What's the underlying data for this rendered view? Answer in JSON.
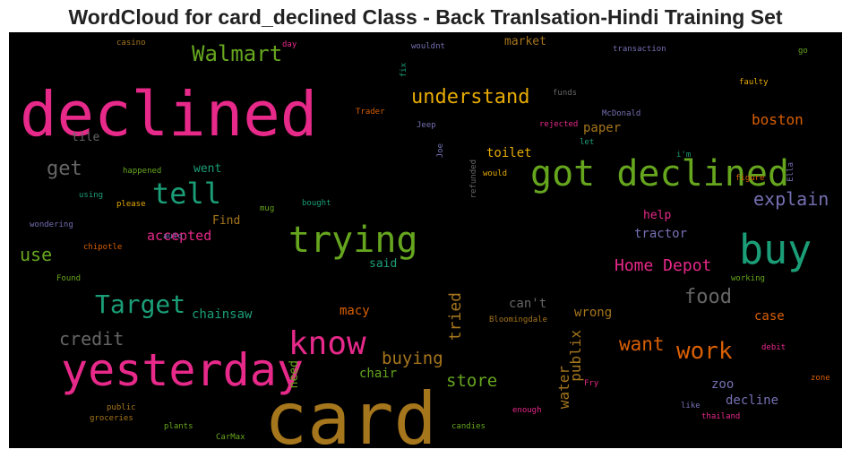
{
  "chart_data": {
    "type": "wordcloud",
    "title": "WordCloud for card_declined Class - Back Tranlsation-Hindi Training Set",
    "background": "#000000",
    "colors": {
      "pink": "#e7298a",
      "orange": "#d95f02",
      "green": "#66a61e",
      "teal": "#1b9e77",
      "gold": "#e6ab02",
      "brown": "#a6761d",
      "purple": "#7570b3",
      "gray": "#666666"
    },
    "words": [
      {
        "text": "card",
        "weight": 1.0,
        "color": "#a6761d",
        "orientation": "horizontal"
      },
      {
        "text": "declined",
        "weight": 0.86,
        "color": "#e7298a",
        "orientation": "horizontal"
      },
      {
        "text": "yesterday",
        "weight": 0.63,
        "color": "#e7298a",
        "orientation": "horizontal"
      },
      {
        "text": "buy",
        "weight": 0.56,
        "color": "#1b9e77",
        "orientation": "horizontal"
      },
      {
        "text": "got declined",
        "weight": 0.5,
        "color": "#66a61e",
        "orientation": "horizontal"
      },
      {
        "text": "trying",
        "weight": 0.5,
        "color": "#66a61e",
        "orientation": "horizontal"
      },
      {
        "text": "know",
        "weight": 0.45,
        "color": "#e7298a",
        "orientation": "horizontal"
      },
      {
        "text": "tell",
        "weight": 0.4,
        "color": "#1b9e77",
        "orientation": "horizontal"
      },
      {
        "text": "Target",
        "weight": 0.35,
        "color": "#1b9e77",
        "orientation": "horizontal"
      },
      {
        "text": "work",
        "weight": 0.33,
        "color": "#d95f02",
        "orientation": "horizontal"
      },
      {
        "text": "Walmart",
        "weight": 0.3,
        "color": "#66a61e",
        "orientation": "horizontal"
      },
      {
        "text": "food",
        "weight": 0.28,
        "color": "#666666",
        "orientation": "horizontal"
      },
      {
        "text": "understand",
        "weight": 0.27,
        "color": "#e6ab02",
        "orientation": "horizontal"
      },
      {
        "text": "explain",
        "weight": 0.25,
        "color": "#7570b3",
        "orientation": "horizontal"
      },
      {
        "text": "want",
        "weight": 0.26,
        "color": "#d95f02",
        "orientation": "horizontal"
      },
      {
        "text": "get",
        "weight": 0.27,
        "color": "#666666",
        "orientation": "horizontal"
      },
      {
        "text": "credit",
        "weight": 0.25,
        "color": "#666666",
        "orientation": "horizontal"
      },
      {
        "text": "use",
        "weight": 0.25,
        "color": "#66a61e",
        "orientation": "horizontal"
      },
      {
        "text": "Home Depot",
        "weight": 0.22,
        "color": "#e7298a",
        "orientation": "horizontal"
      },
      {
        "text": "buying",
        "weight": 0.24,
        "color": "#a6761d",
        "orientation": "horizontal"
      },
      {
        "text": "store",
        "weight": 0.24,
        "color": "#66a61e",
        "orientation": "horizontal"
      },
      {
        "text": "tried",
        "weight": 0.23,
        "color": "#a6761d",
        "orientation": "vertical"
      },
      {
        "text": "publix",
        "weight": 0.2,
        "color": "#a6761d",
        "orientation": "vertical"
      },
      {
        "text": "water",
        "weight": 0.2,
        "color": "#a6761d",
        "orientation": "vertical"
      },
      {
        "text": "boston",
        "weight": 0.2,
        "color": "#d95f02",
        "orientation": "horizontal"
      },
      {
        "text": "accepted",
        "weight": 0.19,
        "color": "#e7298a",
        "orientation": "horizontal"
      },
      {
        "text": "chainsaw",
        "weight": 0.18,
        "color": "#1b9e77",
        "orientation": "horizontal"
      },
      {
        "text": "macy",
        "weight": 0.18,
        "color": "#d95f02",
        "orientation": "horizontal"
      },
      {
        "text": "chair",
        "weight": 0.18,
        "color": "#66a61e",
        "orientation": "horizontal"
      },
      {
        "text": "toilet",
        "weight": 0.18,
        "color": "#e6ab02",
        "orientation": "horizontal"
      },
      {
        "text": "paper",
        "weight": 0.18,
        "color": "#a6761d",
        "orientation": "horizontal"
      },
      {
        "text": "tractor",
        "weight": 0.18,
        "color": "#7570b3",
        "orientation": "horizontal"
      },
      {
        "text": "can't",
        "weight": 0.18,
        "color": "#666666",
        "orientation": "horizontal"
      },
      {
        "text": "wrong",
        "weight": 0.18,
        "color": "#a6761d",
        "orientation": "horizontal"
      },
      {
        "text": "case",
        "weight": 0.18,
        "color": "#d95f02",
        "orientation": "horizontal"
      },
      {
        "text": "decline",
        "weight": 0.18,
        "color": "#7570b3",
        "orientation": "horizontal"
      },
      {
        "text": "zoo",
        "weight": 0.17,
        "color": "#7570b3",
        "orientation": "horizontal"
      },
      {
        "text": "market",
        "weight": 0.16,
        "color": "#a6761d",
        "orientation": "horizontal"
      },
      {
        "text": "tile",
        "weight": 0.16,
        "color": "#666666",
        "orientation": "horizontal"
      },
      {
        "text": "went",
        "weight": 0.16,
        "color": "#1b9e77",
        "orientation": "horizontal"
      },
      {
        "text": "Find",
        "weight": 0.16,
        "color": "#a6761d",
        "orientation": "horizontal"
      },
      {
        "text": "said",
        "weight": 0.16,
        "color": "#1b9e77",
        "orientation": "horizontal"
      },
      {
        "text": "help",
        "weight": 0.16,
        "color": "#e7298a",
        "orientation": "horizontal"
      },
      {
        "text": "need",
        "weight": 0.16,
        "color": "#66a61e",
        "orientation": "vertical"
      },
      {
        "text": "casino",
        "weight": 0.08,
        "color": "#a6761d",
        "orientation": "horizontal"
      },
      {
        "text": "day",
        "weight": 0.08,
        "color": "#e7298a",
        "orientation": "horizontal"
      },
      {
        "text": "wouldnt",
        "weight": 0.08,
        "color": "#7570b3",
        "orientation": "horizontal"
      },
      {
        "text": "transaction",
        "weight": 0.08,
        "color": "#7570b3",
        "orientation": "horizontal"
      },
      {
        "text": "go",
        "weight": 0.08,
        "color": "#66a61e",
        "orientation": "horizontal"
      },
      {
        "text": "fix",
        "weight": 0.07,
        "color": "#1b9e77",
        "orientation": "vertical"
      },
      {
        "text": "faulty",
        "weight": 0.08,
        "color": "#e6ab02",
        "orientation": "horizontal"
      },
      {
        "text": "funds",
        "weight": 0.08,
        "color": "#666666",
        "orientation": "horizontal"
      },
      {
        "text": "Trader",
        "weight": 0.08,
        "color": "#d95f02",
        "orientation": "horizontal"
      },
      {
        "text": "Jeep",
        "weight": 0.08,
        "color": "#7570b3",
        "orientation": "horizontal"
      },
      {
        "text": "McDonald",
        "weight": 0.08,
        "color": "#7570b3",
        "orientation": "horizontal"
      },
      {
        "text": "rejected",
        "weight": 0.08,
        "color": "#e7298a",
        "orientation": "horizontal"
      },
      {
        "text": "let",
        "weight": 0.08,
        "color": "#1b9e77",
        "orientation": "horizontal"
      },
      {
        "text": "Joe",
        "weight": 0.07,
        "color": "#7570b3",
        "orientation": "vertical"
      },
      {
        "text": "i'm",
        "weight": 0.08,
        "color": "#1b9e77",
        "orientation": "horizontal"
      },
      {
        "text": "happened",
        "weight": 0.08,
        "color": "#66a61e",
        "orientation": "horizontal"
      },
      {
        "text": "would",
        "weight": 0.08,
        "color": "#e6ab02",
        "orientation": "horizontal"
      },
      {
        "text": "refunded",
        "weight": 0.07,
        "color": "#666666",
        "orientation": "vertical"
      },
      {
        "text": "figure",
        "weight": 0.08,
        "color": "#d95f02",
        "orientation": "horizontal"
      },
      {
        "text": "Ella",
        "weight": 0.07,
        "color": "#7570b3",
        "orientation": "vertical"
      },
      {
        "text": "using",
        "weight": 0.08,
        "color": "#1b9e77",
        "orientation": "horizontal"
      },
      {
        "text": "please",
        "weight": 0.08,
        "color": "#e6ab02",
        "orientation": "horizontal"
      },
      {
        "text": "mug",
        "weight": 0.08,
        "color": "#66a61e",
        "orientation": "horizontal"
      },
      {
        "text": "bought",
        "weight": 0.08,
        "color": "#1b9e77",
        "orientation": "horizontal"
      },
      {
        "text": "wondering",
        "weight": 0.08,
        "color": "#7570b3",
        "orientation": "horizontal"
      },
      {
        "text": "auto",
        "weight": 0.08,
        "color": "#7570b3",
        "orientation": "horizontal"
      },
      {
        "text": "chipotle",
        "weight": 0.08,
        "color": "#d95f02",
        "orientation": "horizontal"
      },
      {
        "text": "Found",
        "weight": 0.08,
        "color": "#66a61e",
        "orientation": "horizontal"
      },
      {
        "text": "working",
        "weight": 0.08,
        "color": "#66a61e",
        "orientation": "horizontal"
      },
      {
        "text": "Bloomingdale",
        "weight": 0.08,
        "color": "#a6761d",
        "orientation": "horizontal"
      },
      {
        "text": "debit",
        "weight": 0.08,
        "color": "#e7298a",
        "orientation": "horizontal"
      },
      {
        "text": "zone",
        "weight": 0.08,
        "color": "#d95f02",
        "orientation": "horizontal"
      },
      {
        "text": "Fry",
        "weight": 0.08,
        "color": "#e7298a",
        "orientation": "horizontal"
      },
      {
        "text": "like",
        "weight": 0.08,
        "color": "#7570b3",
        "orientation": "horizontal"
      },
      {
        "text": "thailand",
        "weight": 0.08,
        "color": "#e7298a",
        "orientation": "horizontal"
      },
      {
        "text": "enough",
        "weight": 0.08,
        "color": "#e7298a",
        "orientation": "horizontal"
      },
      {
        "text": "public",
        "weight": 0.08,
        "color": "#a6761d",
        "orientation": "horizontal"
      },
      {
        "text": "groceries",
        "weight": 0.08,
        "color": "#a6761d",
        "orientation": "horizontal"
      },
      {
        "text": "plants",
        "weight": 0.08,
        "color": "#66a61e",
        "orientation": "horizontal"
      },
      {
        "text": "CarMax",
        "weight": 0.08,
        "color": "#66a61e",
        "orientation": "horizontal"
      },
      {
        "text": "candies",
        "weight": 0.08,
        "color": "#66a61e",
        "orientation": "horizontal"
      }
    ]
  }
}
